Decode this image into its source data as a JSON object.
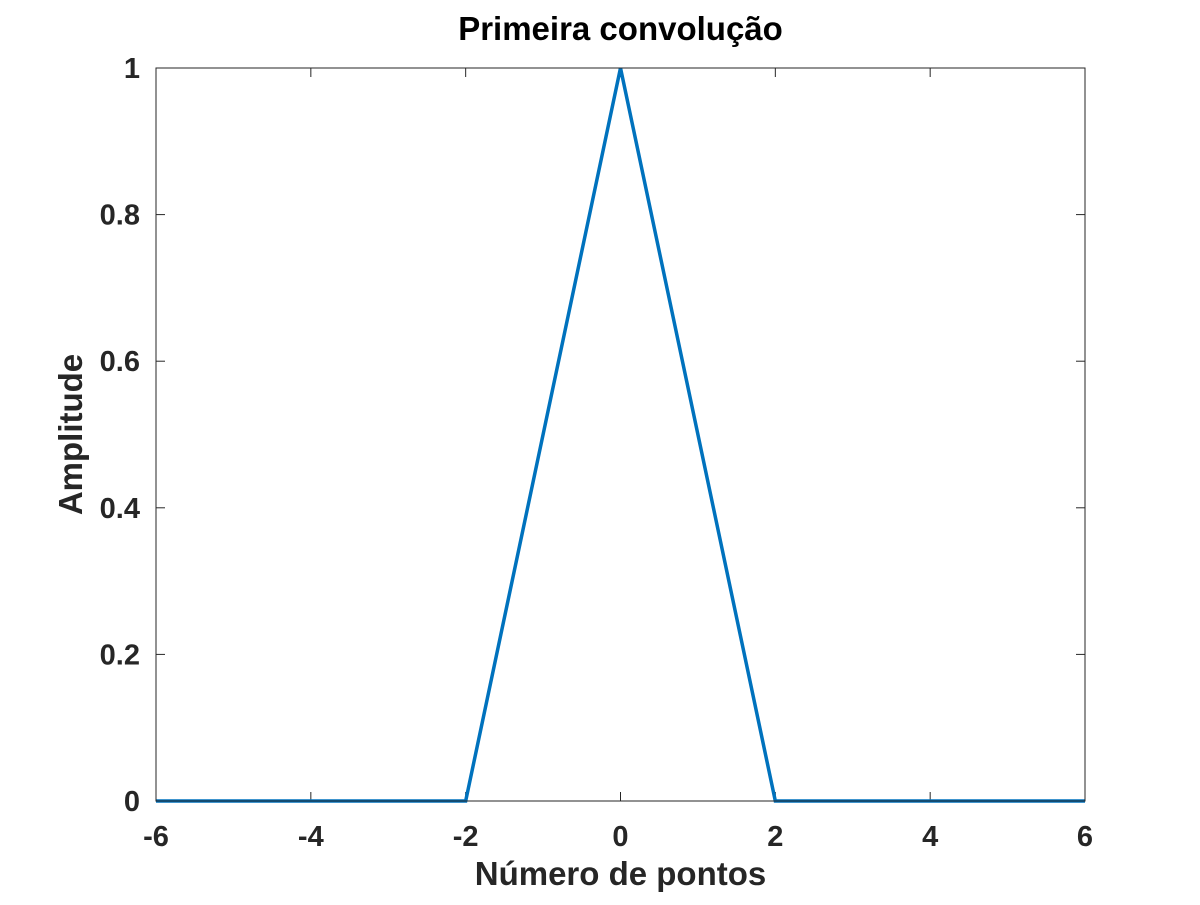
{
  "chart_data": {
    "type": "line",
    "title": "Primeira convolução",
    "xlabel": "Número de pontos",
    "ylabel": "Amplitude",
    "xlim": [
      -6,
      6
    ],
    "ylim": [
      0,
      1
    ],
    "xticks": [
      "-6",
      "-4",
      "-2",
      "0",
      "2",
      "4",
      "6"
    ],
    "yticks": [
      "0",
      "0.2",
      "0.4",
      "0.6",
      "0.8",
      "1"
    ],
    "grid": false,
    "series": [
      {
        "color": "#0072bd",
        "x": [
          -6,
          -2,
          0,
          2,
          6
        ],
        "y": [
          0,
          0,
          1,
          0,
          0
        ]
      }
    ]
  }
}
